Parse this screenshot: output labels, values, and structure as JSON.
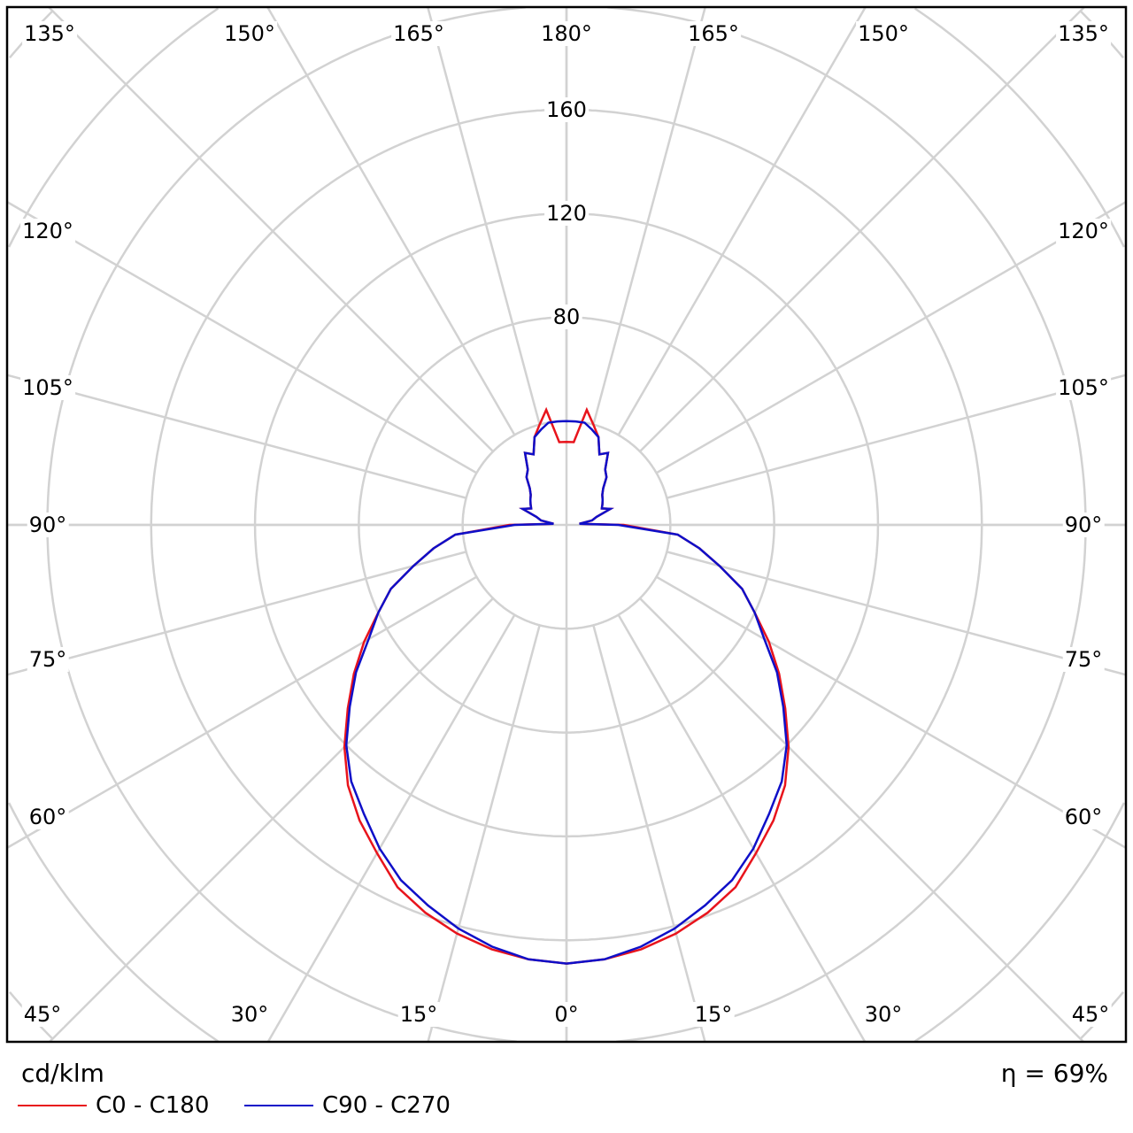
{
  "chart_data": {
    "type": "polar-line",
    "unit_label": "cd/klm",
    "efficiency_label": "η = 69%",
    "radial_ticks": [
      80,
      120,
      160
    ],
    "radial_grid_step": 40,
    "angle_grid_step_deg": 15,
    "grid": true,
    "angle_labels": {
      "top": [
        "135°",
        "150°",
        "165°",
        "180°",
        "165°",
        "150°",
        "135°"
      ],
      "left": [
        "120°",
        "105°",
        "90°",
        "75°",
        "60°"
      ],
      "right": [
        "120°",
        "105°",
        "90°",
        "75°",
        "60°"
      ],
      "bottom": [
        "45°",
        "30°",
        "15°",
        "0°",
        "15°",
        "30°",
        "45°"
      ]
    },
    "angles_deg": [
      0,
      5,
      10,
      15,
      20,
      25,
      30,
      35,
      40,
      45,
      50,
      55,
      60,
      65,
      70,
      75,
      80,
      85,
      90,
      95,
      100,
      105,
      110,
      115,
      120,
      125,
      130,
      135,
      140,
      145,
      150,
      155,
      160,
      165,
      170,
      175,
      180
    ],
    "series": [
      {
        "name": "C0 - C180",
        "color": "#e8141c",
        "values": [
          169,
          168,
          166,
          163,
          159,
          154,
          146,
          139,
          131,
          121,
          110,
          100,
          90,
          80,
          72,
          61,
          52,
          43,
          22,
          5,
          10,
          12,
          18,
          15,
          16,
          17,
          18,
          20,
          24,
          26,
          32,
          30,
          36,
          40,
          45,
          32,
          32
        ]
      },
      {
        "name": "C90 - C270",
        "color": "#0f0fc8",
        "values": [
          169,
          168,
          165,
          161,
          156,
          151,
          144,
          136,
          129,
          120,
          109,
          99,
          88,
          80,
          72,
          61,
          52,
          43,
          20,
          5,
          10,
          12,
          18,
          15,
          16,
          17,
          18,
          20,
          24,
          26,
          32,
          30,
          36,
          38,
          40,
          40,
          40
        ]
      }
    ],
    "legend_position": "bottom-left"
  }
}
